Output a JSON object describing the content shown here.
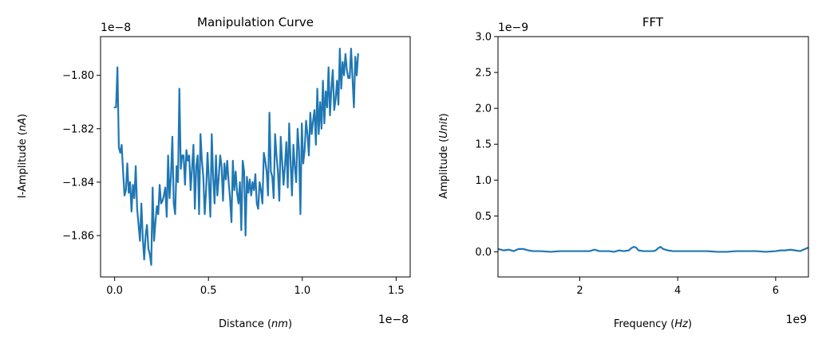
{
  "chart_data": [
    {
      "type": "line",
      "title": "Manipulation Curve",
      "xlabel": "Distance (nm)",
      "ylabel": "I-Amplitude (nA)",
      "x_offset_text": "1e−8",
      "y_offset_text": "1e−8",
      "xlim": [
        -7.5e-10,
        1.575e-08
      ],
      "ylim": [
        -1.8755e-08,
        -1.7855e-08
      ],
      "xticks": [
        0.0,
        5e-09,
        1e-08,
        1.5e-08
      ],
      "xtick_labels": [
        "0.0",
        "0.5",
        "1.0",
        "1.5"
      ],
      "yticks": [
        -1.86e-08,
        -1.84e-08,
        -1.82e-08,
        -1.8e-08
      ],
      "ytick_labels": [
        "−1.86",
        "−1.84",
        "−1.82",
        "−1.80"
      ],
      "grid": false,
      "color": "#1f77b4",
      "x_start": 0.0,
      "x_step": 7.5e-11,
      "values_e8": [
        -1.812,
        -1.812,
        -1.797,
        -1.827,
        -1.829,
        -1.826,
        -1.836,
        -1.845,
        -1.843,
        -1.833,
        -1.844,
        -1.84,
        -1.851,
        -1.841,
        -1.846,
        -1.834,
        -1.85,
        -1.856,
        -1.862,
        -1.848,
        -1.861,
        -1.869,
        -1.86,
        -1.856,
        -1.865,
        -1.867,
        -1.871,
        -1.842,
        -1.862,
        -1.855,
        -1.849,
        -1.852,
        -1.841,
        -1.848,
        -1.847,
        -1.845,
        -1.842,
        -1.853,
        -1.83,
        -1.846,
        -1.838,
        -1.823,
        -1.848,
        -1.852,
        -1.834,
        -1.84,
        -1.805,
        -1.835,
        -1.83,
        -1.83,
        -1.841,
        -1.828,
        -1.832,
        -1.83,
        -1.843,
        -1.835,
        -1.826,
        -1.85,
        -1.834,
        -1.83,
        -1.852,
        -1.822,
        -1.832,
        -1.838,
        -1.852,
        -1.843,
        -1.829,
        -1.84,
        -1.853,
        -1.822,
        -1.838,
        -1.848,
        -1.83,
        -1.845,
        -1.838,
        -1.83,
        -1.834,
        -1.847,
        -1.833,
        -1.839,
        -1.832,
        -1.84,
        -1.846,
        -1.855,
        -1.832,
        -1.843,
        -1.836,
        -1.844,
        -1.848,
        -1.84,
        -1.858,
        -1.832,
        -1.836,
        -1.86,
        -1.838,
        -1.844,
        -1.839,
        -1.845,
        -1.84,
        -1.843,
        -1.837,
        -1.848,
        -1.85,
        -1.84,
        -1.843,
        -1.848,
        -1.829,
        -1.832,
        -1.836,
        -1.845,
        -1.814,
        -1.836,
        -1.838,
        -1.846,
        -1.822,
        -1.83,
        -1.836,
        -1.847,
        -1.823,
        -1.832,
        -1.841,
        -1.834,
        -1.825,
        -1.842,
        -1.818,
        -1.832,
        -1.845,
        -1.826,
        -1.834,
        -1.84,
        -1.82,
        -1.828,
        -1.852,
        -1.818,
        -1.833,
        -1.828,
        -1.817,
        -1.822,
        -1.83,
        -1.814,
        -1.822,
        -1.817,
        -1.813,
        -1.826,
        -1.805,
        -1.822,
        -1.81,
        -1.82,
        -1.802,
        -1.818,
        -1.806,
        -1.812,
        -1.797,
        -1.815,
        -1.805,
        -1.798,
        -1.813,
        -1.809,
        -1.802,
        -1.811,
        -1.79,
        -1.805,
        -1.795,
        -1.8,
        -1.792,
        -1.798,
        -1.801,
        -1.801,
        -1.79,
        -1.801,
        -1.812,
        -1.793,
        -1.8,
        -1.792
      ]
    },
    {
      "type": "line",
      "title": "FFT",
      "xlabel": "Frequency (Hz)",
      "ylabel": "Amplitude (Unit)",
      "x_offset_text": "1e9",
      "y_offset_text": "1e−9",
      "xlim": [
        330000000.0,
        6670000000.0
      ],
      "ylim": [
        -3.5e-10,
        3e-09
      ],
      "xticks": [
        2000000000.0,
        4000000000.0,
        6000000000.0
      ],
      "xtick_labels": [
        "2",
        "4",
        "6"
      ],
      "yticks": [
        0.0,
        5e-10,
        1e-09,
        1.5e-09,
        2e-09,
        2.5e-09,
        3e-09
      ],
      "ytick_labels": [
        "0.0",
        "0.5",
        "1.0",
        "1.5",
        "2.0",
        "2.5",
        "3.0"
      ],
      "grid": false,
      "color": "#1f77b4",
      "x_e9": [
        0.33,
        0.45,
        0.55,
        0.65,
        0.75,
        0.85,
        0.95,
        1.05,
        1.2,
        1.4,
        1.6,
        1.8,
        2.0,
        2.1,
        2.2,
        2.3,
        2.4,
        2.5,
        2.6,
        2.7,
        2.8,
        2.9,
        3.0,
        3.05,
        3.1,
        3.15,
        3.2,
        3.3,
        3.4,
        3.5,
        3.55,
        3.6,
        3.65,
        3.7,
        3.8,
        3.9,
        4.0,
        4.2,
        4.4,
        4.6,
        4.8,
        5.0,
        5.2,
        5.4,
        5.6,
        5.8,
        6.0,
        6.1,
        6.2,
        6.3,
        6.4,
        6.5,
        6.6,
        6.67
      ],
      "y_e9": [
        0.04,
        0.02,
        0.03,
        0.01,
        0.04,
        0.04,
        0.02,
        0.01,
        0.01,
        0.0,
        0.01,
        0.01,
        0.01,
        0.01,
        0.01,
        0.03,
        0.01,
        0.01,
        0.01,
        0.0,
        0.02,
        0.01,
        0.02,
        0.05,
        0.07,
        0.06,
        0.02,
        0.01,
        0.01,
        0.01,
        0.02,
        0.05,
        0.07,
        0.04,
        0.02,
        0.01,
        0.01,
        0.01,
        0.01,
        0.01,
        0.0,
        0.0,
        0.01,
        0.01,
        0.01,
        0.0,
        0.01,
        0.02,
        0.02,
        0.03,
        0.02,
        0.01,
        0.04,
        0.06
      ]
    }
  ]
}
